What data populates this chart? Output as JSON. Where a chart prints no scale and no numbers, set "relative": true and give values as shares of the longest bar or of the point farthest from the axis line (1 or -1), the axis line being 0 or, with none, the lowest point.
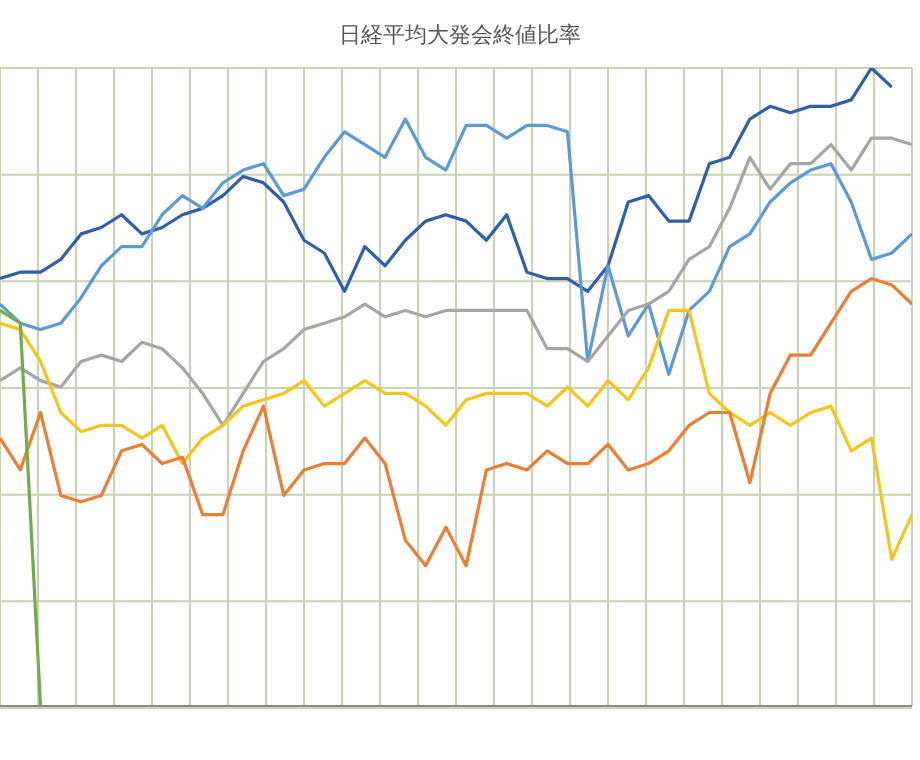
{
  "chart_data": {
    "type": "line",
    "title": "日経平均大発会終値比率",
    "relative": true,
    "grid": true,
    "tick_labels": false,
    "marker": "none",
    "line_style": "solid",
    "categories": [
      null,
      null,
      null,
      null,
      null,
      null,
      null,
      null,
      null,
      null,
      null,
      null,
      null,
      null,
      null,
      null,
      null,
      null,
      null,
      null,
      null,
      null,
      null,
      null,
      null,
      null,
      null,
      null,
      null,
      null,
      null,
      null,
      null,
      null,
      null,
      null,
      null,
      null,
      null,
      null,
      null,
      null,
      null,
      null,
      null,
      null
    ],
    "series": [
      {
        "color": "#2e5fa8",
        "values": [
          0.67,
          0.68,
          0.68,
          0.7,
          0.74,
          0.75,
          0.77,
          0.74,
          0.75,
          0.77,
          0.78,
          0.8,
          0.83,
          0.82,
          0.79,
          0.73,
          0.71,
          0.65,
          0.72,
          0.69,
          0.73,
          0.76,
          0.77,
          0.76,
          0.73,
          0.77,
          0.68,
          0.67,
          0.67,
          0.65,
          0.69,
          0.79,
          0.8,
          0.76,
          0.76,
          0.85,
          0.86,
          0.92,
          0.94,
          0.93,
          0.94,
          0.94,
          0.95,
          1.0,
          0.97,
          null
        ]
      },
      {
        "color": "#5b9bd5",
        "values": [
          0.63,
          0.6,
          0.59,
          0.6,
          0.64,
          0.69,
          0.72,
          0.72,
          0.77,
          0.8,
          0.78,
          0.82,
          0.84,
          0.85,
          0.8,
          0.81,
          0.86,
          0.9,
          0.88,
          0.86,
          0.92,
          0.86,
          0.84,
          0.91,
          0.91,
          0.89,
          0.91,
          0.91,
          0.9,
          0.54,
          0.69,
          0.58,
          0.63,
          0.52,
          0.62,
          0.65,
          0.72,
          0.74,
          0.79,
          0.82,
          0.84,
          0.85,
          0.79,
          0.7,
          0.71,
          0.74
        ]
      },
      {
        "color": "#a5a5a5",
        "values": [
          0.51,
          0.53,
          0.51,
          0.5,
          0.54,
          0.55,
          0.54,
          0.57,
          0.56,
          0.53,
          0.49,
          0.44,
          0.49,
          0.54,
          0.56,
          0.59,
          0.6,
          0.61,
          0.63,
          0.61,
          0.62,
          0.61,
          0.62,
          0.62,
          0.62,
          0.62,
          0.62,
          0.56,
          0.56,
          0.54,
          0.58,
          0.62,
          0.63,
          0.65,
          0.7,
          0.72,
          0.78,
          0.86,
          0.81,
          0.85,
          0.85,
          0.88,
          0.84,
          0.89,
          0.89,
          0.88
        ]
      },
      {
        "color": "#f5c518",
        "values": [
          0.6,
          0.59,
          0.54,
          0.46,
          0.43,
          0.44,
          0.44,
          0.42,
          0.44,
          0.38,
          0.42,
          0.44,
          0.47,
          0.48,
          0.49,
          0.51,
          0.47,
          0.49,
          0.51,
          0.49,
          0.49,
          0.47,
          0.44,
          0.48,
          0.49,
          0.49,
          0.49,
          0.47,
          0.5,
          0.47,
          0.51,
          0.48,
          0.53,
          0.62,
          0.62,
          0.49,
          0.46,
          0.44,
          0.46,
          0.44,
          0.46,
          0.47,
          0.4,
          0.42,
          0.23,
          0.3
        ]
      },
      {
        "color": "#ed7d31",
        "values": [
          0.42,
          0.37,
          0.46,
          0.33,
          0.32,
          0.33,
          0.4,
          0.41,
          0.38,
          0.39,
          0.3,
          0.3,
          0.4,
          0.47,
          0.33,
          0.37,
          0.38,
          0.38,
          0.42,
          0.38,
          0.26,
          0.22,
          0.28,
          0.22,
          0.37,
          0.38,
          0.37,
          0.4,
          0.38,
          0.38,
          0.41,
          0.37,
          0.38,
          0.4,
          0.44,
          0.46,
          0.46,
          0.35,
          0.49,
          0.55,
          0.55,
          0.6,
          0.65,
          0.67,
          0.66,
          0.63
        ]
      },
      {
        "color": "#70ad47",
        "values": [
          0.62,
          0.6,
          0,
          null,
          null,
          null,
          null,
          null,
          null,
          null,
          null,
          null,
          null,
          null,
          null,
          null,
          null,
          null,
          null,
          null,
          null,
          null,
          null,
          null,
          null,
          null,
          null,
          null,
          null,
          null,
          null,
          null,
          null,
          null,
          null,
          null,
          null,
          null,
          null,
          null,
          null,
          null,
          null,
          null,
          null,
          null
        ]
      }
    ]
  }
}
